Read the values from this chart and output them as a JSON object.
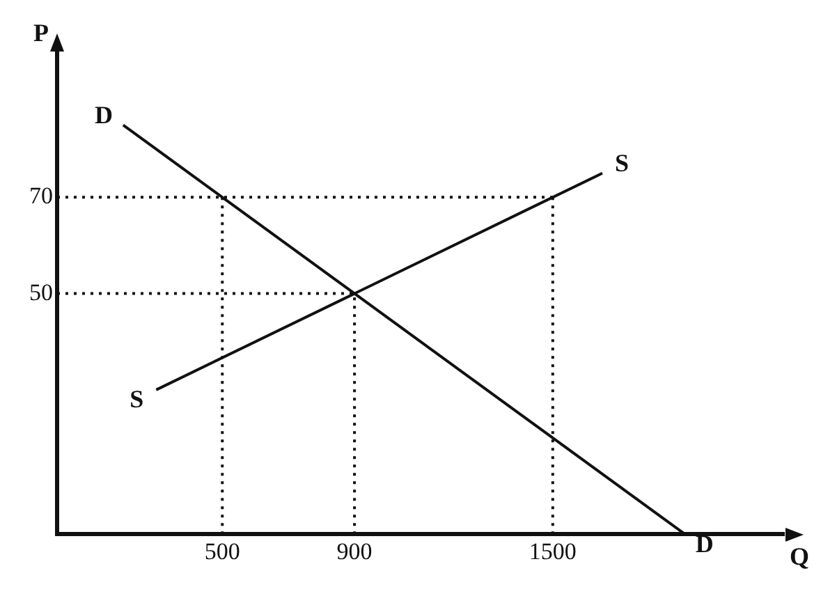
{
  "chart_data": {
    "type": "line",
    "xlabel": "Q",
    "ylabel": "P",
    "xlim": [
      0,
      2200
    ],
    "ylim": [
      0,
      100
    ],
    "xticks": [
      500,
      900,
      1500
    ],
    "yticks": [
      50,
      70
    ],
    "grid": false,
    "legend": false,
    "marker": "none",
    "series": [
      {
        "name": "D",
        "color": "#111111",
        "x": [
          200,
          1900
        ],
        "values": [
          85,
          0
        ],
        "line_style": "solid"
      },
      {
        "name": "S",
        "color": "#111111",
        "x": [
          300,
          1650
        ],
        "values": [
          30,
          75
        ],
        "line_style": "solid"
      },
      {
        "color": "#111111",
        "x": [
          0,
          1500
        ],
        "values": [
          70,
          70
        ],
        "line_style": "dotted"
      },
      {
        "color": "#111111",
        "x": [
          500,
          500
        ],
        "values": [
          0,
          70
        ],
        "line_style": "dotted"
      },
      {
        "color": "#111111",
        "x": [
          1500,
          1500
        ],
        "values": [
          0,
          70
        ],
        "line_style": "dotted"
      },
      {
        "color": "#111111",
        "x": [
          0,
          900
        ],
        "values": [
          50,
          50
        ],
        "line_style": "dotted"
      },
      {
        "color": "#111111",
        "x": [
          900,
          900
        ],
        "values": [
          0,
          50
        ],
        "line_style": "dotted"
      }
    ]
  }
}
